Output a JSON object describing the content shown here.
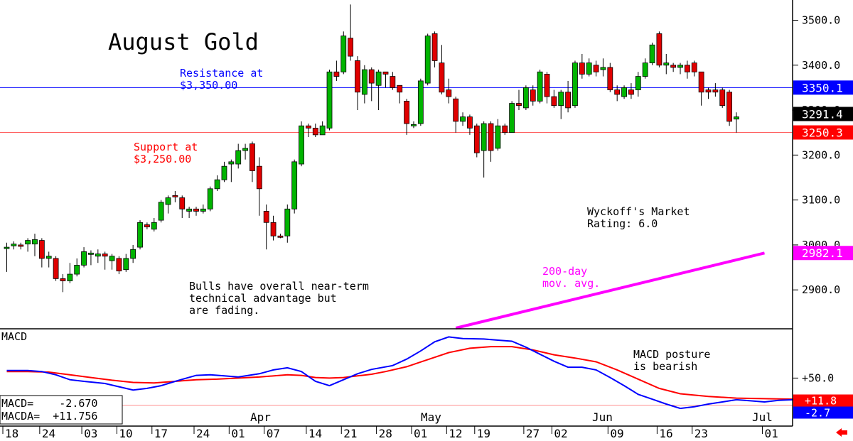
{
  "chart_data": [
    {
      "type": "candlestick",
      "title": "August Gold",
      "ylim": [
        2815,
        3545
      ],
      "y_ticks": [
        "3500.0",
        "3400.0",
        "3300.0",
        "3200.0",
        "3100.0",
        "3000.0",
        "2900.0"
      ],
      "x_tick_labels": [
        "18",
        "24",
        "03",
        "10",
        "17",
        "24",
        "01",
        "07",
        "14",
        "21",
        "28",
        "01",
        "12",
        "19",
        "27",
        "02",
        "09",
        "16",
        "23",
        "01"
      ],
      "month_labels": [
        "Apr",
        "May",
        "Jun",
        "Jul"
      ],
      "annotations": {
        "resistance": "Resistance at\n$3,350.00",
        "support": "Support at\n$3,250.00",
        "wyckoff": "Wyckoff's Market\nRating: 6.0",
        "bulls": "Bulls have overall near-term\ntechnical advantage but\nare fading.",
        "ma": "200-day\nmov. avg."
      },
      "levels": [
        {
          "label": "3350.1",
          "value": 3350.1,
          "color": "#0000ff",
          "role": "resistance"
        },
        {
          "label": "3291.4",
          "value": 3291.4,
          "color": "#000000",
          "role": "last"
        },
        {
          "label": "3250.3",
          "value": 3250.3,
          "color": "#ff0000",
          "role": "support"
        },
        {
          "label": "2982.1",
          "value": 2982.1,
          "color": "#ff00ff",
          "role": "ma"
        }
      ],
      "moving_average_200": [
        [
          64,
          2815
        ],
        [
          108,
          2982
        ]
      ],
      "candles": [
        [
          2992,
          2995,
          2940,
          3005
        ],
        [
          2998,
          3002,
          2990,
          3008
        ],
        [
          3000,
          2998,
          2990,
          3005
        ],
        [
          3002,
          3010,
          2985,
          3015
        ],
        [
          3002,
          3012,
          2975,
          3025
        ],
        [
          3010,
          2970,
          2950,
          3015
        ],
        [
          2970,
          2975,
          2950,
          2985
        ],
        [
          2970,
          2925,
          2920,
          2975
        ],
        [
          2925,
          2920,
          2895,
          2935
        ],
        [
          2920,
          2935,
          2915,
          2960
        ],
        [
          2935,
          2955,
          2930,
          2970
        ],
        [
          2955,
          2985,
          2950,
          2995
        ],
        [
          2980,
          2982,
          2955,
          2988
        ],
        [
          2975,
          2980,
          2960,
          2990
        ],
        [
          2980,
          2975,
          2945,
          2985
        ],
        [
          2965,
          2975,
          2945,
          2980
        ],
        [
          2970,
          2942,
          2935,
          2975
        ],
        [
          2945,
          2970,
          2940,
          2980
        ],
        [
          2970,
          2990,
          2960,
          3000
        ],
        [
          2995,
          3050,
          2990,
          3055
        ],
        [
          3045,
          3040,
          3035,
          3050
        ],
        [
          3035,
          3050,
          3030,
          3060
        ],
        [
          3055,
          3095,
          3050,
          3100
        ],
        [
          3090,
          3105,
          3070,
          3110
        ],
        [
          3110,
          3108,
          3095,
          3120
        ],
        [
          3105,
          3080,
          3060,
          3110
        ],
        [
          3075,
          3080,
          3060,
          3085
        ],
        [
          3080,
          3075,
          3065,
          3085
        ],
        [
          3075,
          3080,
          3070,
          3090
        ],
        [
          3080,
          3125,
          3075,
          3130
        ],
        [
          3125,
          3145,
          3120,
          3155
        ],
        [
          3145,
          3175,
          3140,
          3185
        ],
        [
          3180,
          3185,
          3140,
          3190
        ],
        [
          3180,
          3210,
          3170,
          3225
        ],
        [
          3210,
          3215,
          3190,
          3225
        ],
        [
          3225,
          3165,
          3140,
          3230
        ],
        [
          3175,
          3125,
          3065,
          3195
        ],
        [
          3075,
          3050,
          2990,
          3090
        ],
        [
          3050,
          3020,
          3010,
          3065
        ],
        [
          3020,
          3018,
          3015,
          3025
        ],
        [
          3020,
          3080,
          3005,
          3090
        ],
        [
          3080,
          3185,
          3070,
          3190
        ],
        [
          3180,
          3265,
          3175,
          3275
        ],
        [
          3265,
          3260,
          3240,
          3270
        ],
        [
          3260,
          3245,
          3240,
          3270
        ],
        [
          3245,
          3265,
          3245,
          3275
        ],
        [
          3260,
          3385,
          3255,
          3390
        ],
        [
          3385,
          3375,
          3365,
          3410
        ],
        [
          3385,
          3465,
          3380,
          3475
        ],
        [
          3460,
          3420,
          3410,
          3535
        ],
        [
          3410,
          3340,
          3300,
          3420
        ],
        [
          3335,
          3390,
          3315,
          3400
        ],
        [
          3390,
          3360,
          3320,
          3395
        ],
        [
          3355,
          3385,
          3300,
          3390
        ],
        [
          3385,
          3380,
          3350,
          3385
        ],
        [
          3375,
          3350,
          3345,
          3385
        ],
        [
          3355,
          3340,
          3315,
          3355
        ],
        [
          3320,
          3270,
          3245,
          3325
        ],
        [
          3265,
          3268,
          3260,
          3275
        ],
        [
          3270,
          3365,
          3265,
          3370
        ],
        [
          3360,
          3465,
          3355,
          3470
        ],
        [
          3470,
          3410,
          3395,
          3475
        ],
        [
          3405,
          3340,
          3335,
          3445
        ],
        [
          3345,
          3330,
          3315,
          3370
        ],
        [
          3325,
          3275,
          3250,
          3330
        ],
        [
          3275,
          3285,
          3265,
          3295
        ],
        [
          3285,
          3260,
          3245,
          3290
        ],
        [
          3265,
          3205,
          3195,
          3270
        ],
        [
          3210,
          3270,
          3150,
          3275
        ],
        [
          3270,
          3210,
          3185,
          3275
        ],
        [
          3215,
          3265,
          3210,
          3280
        ],
        [
          3265,
          3250,
          3245,
          3270
        ],
        [
          3250,
          3315,
          3250,
          3320
        ],
        [
          3315,
          3310,
          3300,
          3345
        ],
        [
          3305,
          3350,
          3300,
          3355
        ],
        [
          3345,
          3320,
          3310,
          3355
        ],
        [
          3320,
          3385,
          3315,
          3390
        ],
        [
          3380,
          3330,
          3315,
          3385
        ],
        [
          3330,
          3310,
          3305,
          3345
        ],
        [
          3310,
          3340,
          3280,
          3345
        ],
        [
          3340,
          3305,
          3295,
          3365
        ],
        [
          3310,
          3405,
          3305,
          3410
        ],
        [
          3405,
          3380,
          3370,
          3425
        ],
        [
          3380,
          3405,
          3375,
          3415
        ],
        [
          3400,
          3385,
          3375,
          3410
        ],
        [
          3390,
          3395,
          3375,
          3415
        ],
        [
          3395,
          3345,
          3340,
          3405
        ],
        [
          3345,
          3335,
          3320,
          3355
        ],
        [
          3330,
          3350,
          3325,
          3355
        ],
        [
          3345,
          3335,
          3325,
          3360
        ],
        [
          3345,
          3375,
          3330,
          3385
        ],
        [
          3375,
          3405,
          3370,
          3415
        ],
        [
          3405,
          3445,
          3400,
          3450
        ],
        [
          3470,
          3400,
          3395,
          3475
        ],
        [
          3400,
          3405,
          3380,
          3425
        ],
        [
          3400,
          3395,
          3385,
          3405
        ],
        [
          3395,
          3400,
          3380,
          3405
        ],
        [
          3400,
          3385,
          3370,
          3410
        ],
        [
          3405,
          3385,
          3375,
          3410
        ],
        [
          3385,
          3340,
          3310,
          3385
        ],
        [
          3345,
          3340,
          3325,
          3350
        ],
        [
          3345,
          3340,
          3330,
          3360
        ],
        [
          3345,
          3310,
          3305,
          3350
        ],
        [
          3340,
          3275,
          3265,
          3345
        ],
        [
          3280,
          3285,
          3250,
          3295
        ]
      ],
      "macd_panel": {
        "title": "MACD",
        "tick": "+50.0",
        "ylim": [
          -36,
          137
        ],
        "macd_value": "MACD=    -2.670",
        "macda_value": "MACDA=  +11.756",
        "right_labels": [
          {
            "label": "+11.8",
            "value": 11.8,
            "color": "#ff0000"
          },
          {
            "label": "-2.7",
            "value": -2.7,
            "color": "#0000ff"
          }
        ],
        "annotation": "MACD posture\nis bearish",
        "macd": [
          [
            0,
            64
          ],
          [
            3,
            64
          ],
          [
            5,
            62
          ],
          [
            7,
            56
          ],
          [
            9,
            47
          ],
          [
            11,
            44
          ],
          [
            14,
            40
          ],
          [
            16,
            34
          ],
          [
            18,
            28
          ],
          [
            20,
            31
          ],
          [
            22,
            36
          ],
          [
            24,
            44
          ],
          [
            27,
            55
          ],
          [
            29,
            56
          ],
          [
            31,
            54
          ],
          [
            33,
            52
          ],
          [
            36,
            58
          ],
          [
            38,
            65
          ],
          [
            40,
            69
          ],
          [
            42,
            62
          ],
          [
            44,
            44
          ],
          [
            46,
            36
          ],
          [
            48,
            47
          ],
          [
            50,
            58
          ],
          [
            52,
            66
          ],
          [
            55,
            73
          ],
          [
            57,
            85
          ],
          [
            59,
            100
          ],
          [
            61,
            117
          ],
          [
            63,
            126
          ],
          [
            65,
            123
          ],
          [
            68,
            122
          ],
          [
            70,
            120
          ],
          [
            72,
            118
          ],
          [
            74,
            107
          ],
          [
            76,
            94
          ],
          [
            78,
            81
          ],
          [
            80,
            70
          ],
          [
            82,
            70
          ],
          [
            84,
            65
          ],
          [
            86,
            51
          ],
          [
            88,
            36
          ],
          [
            90,
            20
          ],
          [
            92,
            11
          ],
          [
            94,
            2
          ],
          [
            96,
            -6
          ],
          [
            98,
            -3
          ],
          [
            100,
            2
          ],
          [
            102,
            6
          ],
          [
            104,
            10
          ],
          [
            106,
            8
          ],
          [
            108,
            6
          ],
          [
            110,
            9
          ],
          [
            112,
            10
          ],
          [
            114,
            13
          ],
          [
            116,
            18
          ],
          [
            118,
            18
          ],
          [
            120,
            16
          ],
          [
            122,
            13
          ],
          [
            124,
            15
          ],
          [
            126,
            16
          ],
          [
            128,
            19
          ],
          [
            130,
            20
          ],
          [
            132,
            20
          ],
          [
            134,
            19
          ],
          [
            136,
            18
          ],
          [
            138,
            16
          ],
          [
            140,
            10
          ],
          [
            142,
            5
          ],
          [
            144,
            -2.7
          ]
        ],
        "macda": [
          [
            0,
            62
          ],
          [
            3,
            62
          ],
          [
            6,
            61
          ],
          [
            9,
            56
          ],
          [
            12,
            51
          ],
          [
            15,
            46
          ],
          [
            18,
            42
          ],
          [
            21,
            41
          ],
          [
            24,
            44
          ],
          [
            27,
            47
          ],
          [
            30,
            48
          ],
          [
            33,
            50
          ],
          [
            36,
            52
          ],
          [
            40,
            56
          ],
          [
            42,
            55
          ],
          [
            44,
            51
          ],
          [
            46,
            50
          ],
          [
            48,
            51
          ],
          [
            50,
            54
          ],
          [
            52,
            57
          ],
          [
            54,
            62
          ],
          [
            57,
            71
          ],
          [
            60,
            84
          ],
          [
            63,
            97
          ],
          [
            66,
            105
          ],
          [
            69,
            108
          ],
          [
            72,
            108
          ],
          [
            75,
            102
          ],
          [
            78,
            93
          ],
          [
            81,
            87
          ],
          [
            84,
            80
          ],
          [
            87,
            65
          ],
          [
            90,
            48
          ],
          [
            93,
            31
          ],
          [
            96,
            21
          ],
          [
            100,
            16
          ],
          [
            104,
            13
          ],
          [
            108,
            12
          ],
          [
            112,
            11
          ],
          [
            116,
            12
          ],
          [
            120,
            13
          ],
          [
            124,
            14
          ],
          [
            128,
            15
          ],
          [
            132,
            17
          ],
          [
            136,
            17
          ],
          [
            140,
            15
          ],
          [
            144,
            11.8
          ]
        ]
      }
    }
  ]
}
